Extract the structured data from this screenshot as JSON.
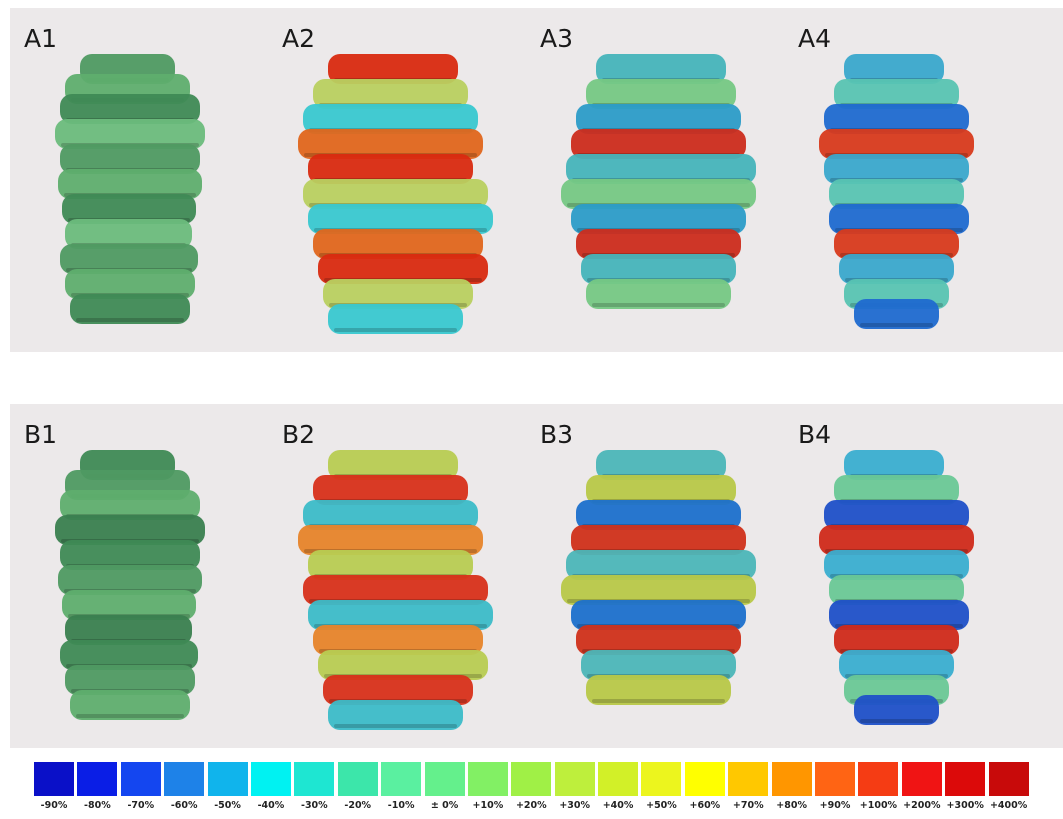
{
  "rows": [
    {
      "id": "A",
      "panels": [
        {
          "label": "A1",
          "colors": [
            "#4f9a62",
            "#5fae6e",
            "#3f8a55",
            "#6cbc7c"
          ]
        },
        {
          "label": "A2",
          "colors": [
            "#d92a10",
            "#b9d060",
            "#39c8d0",
            "#e0661c"
          ]
        },
        {
          "label": "A3",
          "colors": [
            "#46b4ba",
            "#76c884",
            "#2c9cc8",
            "#cc2c1c"
          ]
        },
        {
          "label": "A4",
          "colors": [
            "#3aa8cc",
            "#58c4b2",
            "#1f6ad0",
            "#d83a1c"
          ]
        }
      ]
    },
    {
      "id": "B",
      "panels": [
        {
          "label": "B1",
          "colors": [
            "#3f8a55",
            "#4f9a62",
            "#5fae6e",
            "#3a7f4f"
          ]
        },
        {
          "label": "B2",
          "colors": [
            "#b8cc52",
            "#d8301a",
            "#3cbcc8",
            "#e7842a"
          ]
        },
        {
          "label": "B3",
          "colors": [
            "#4cb6b8",
            "#b8c848",
            "#1c70cc",
            "#d0301a"
          ]
        },
        {
          "label": "B4",
          "colors": [
            "#3aaed0",
            "#6ac896",
            "#1f50c8",
            "#d02a1a"
          ]
        }
      ]
    }
  ],
  "legend": {
    "labels": [
      "-90%",
      "-80%",
      "-70%",
      "-60%",
      "-50%",
      "-40%",
      "-30%",
      "-20%",
      "-10%",
      "± 0%",
      "+10%",
      "+20%",
      "+30%",
      "+40%",
      "+50%",
      "+60%",
      "+70%",
      "+80%",
      "+90%",
      "+100%",
      "+200%",
      "+300%",
      "+400%"
    ],
    "colors": [
      "#0a10c8",
      "#0a1ee6",
      "#1446f0",
      "#1e82e8",
      "#10b4ec",
      "#00f2f2",
      "#1ee6d2",
      "#3ce6aa",
      "#5af0a0",
      "#64f08c",
      "#82f064",
      "#a0f046",
      "#beef3c",
      "#d2f028",
      "#ecf51e",
      "#ffff00",
      "#ffc800",
      "#ff9600",
      "#ff6414",
      "#f53c14",
      "#f01414",
      "#dc0a0a",
      "#c80a0a"
    ]
  }
}
